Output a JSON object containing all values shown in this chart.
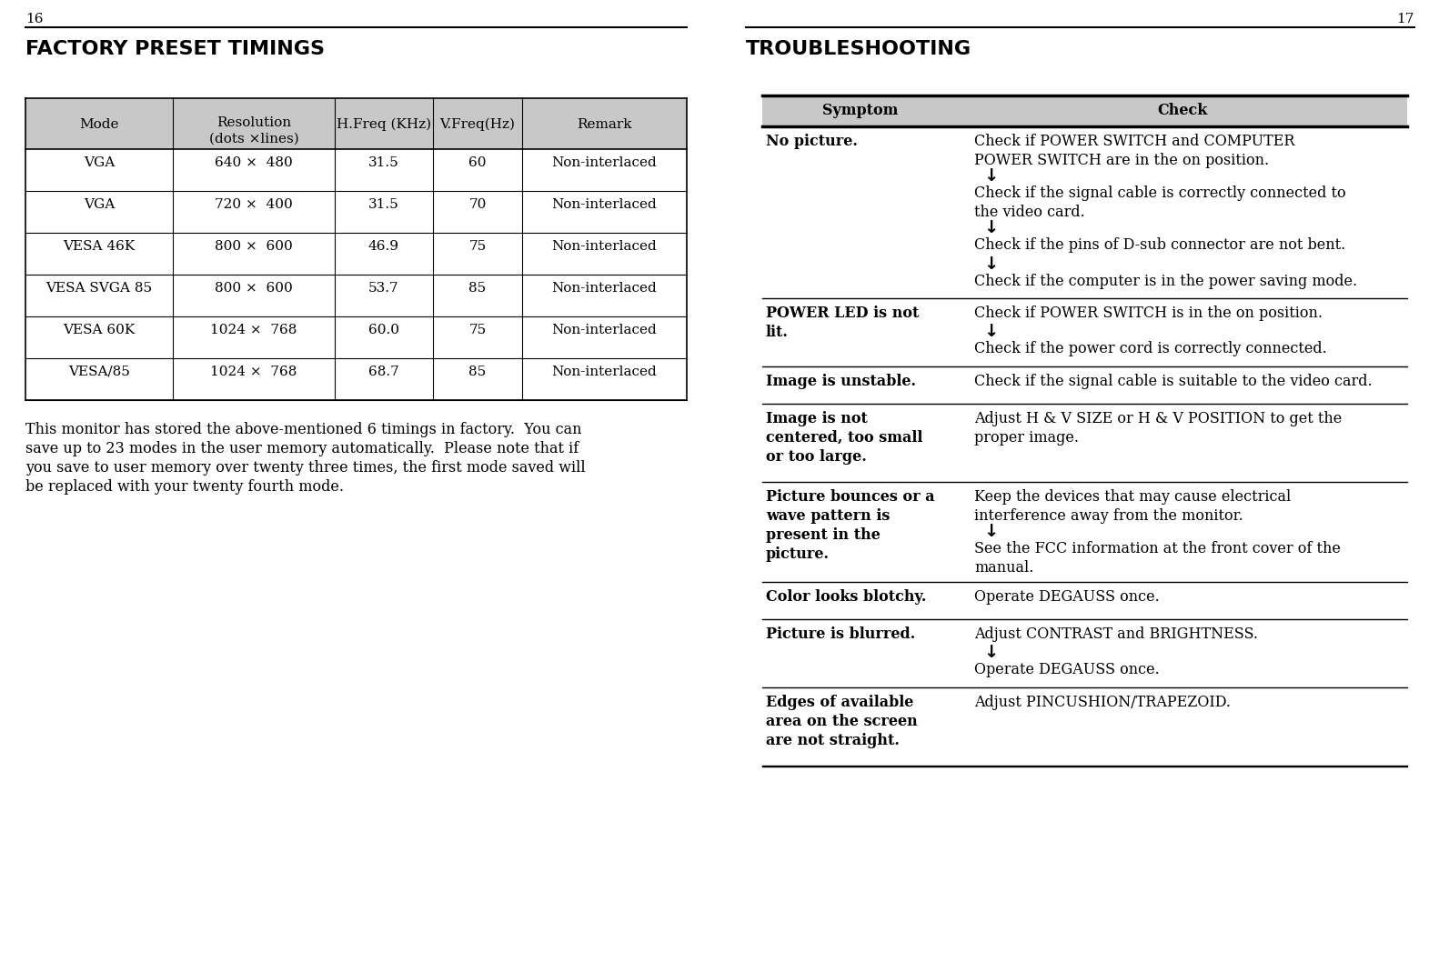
{
  "page_left_num": "16",
  "page_right_num": "17",
  "left_title": "FACTORY PRESET TIMINGS",
  "right_title": "TROUBLESHOOTING",
  "bg_color": "#ffffff",
  "table_header_bg": "#c8c8c8",
  "table_header_cols": [
    "Mode",
    "Resolution\n(dots ×lines)",
    "H.Freq (KHz)",
    "V.Freq(Hz)",
    "Remark"
  ],
  "table_rows": [
    [
      "VGA",
      "640 ×  480",
      "31.5",
      "60",
      "Non-interlaced"
    ],
    [
      "VGA",
      "720 ×  400",
      "31.5",
      "70",
      "Non-interlaced"
    ],
    [
      "VESA 46K",
      "800 ×  600",
      "46.9",
      "75",
      "Non-interlaced"
    ],
    [
      "VESA SVGA 85",
      "800 ×  600",
      "53.7",
      "85",
      "Non-interlaced"
    ],
    [
      "VESA 60K",
      "1024 ×  768",
      "60.0",
      "75",
      "Non-interlaced"
    ],
    [
      "VESA/85",
      "1024 ×  768",
      "68.7",
      "85",
      "Non-interlaced"
    ]
  ],
  "footnote": "This monitor has stored the above-mentioned 6 timings in factory.  You can\nsave up to 23 modes in the user memory automatically.  Please note that if\nyou save to user memory over twenty three times, the first mode saved will\nbe replaced with your twenty fourth mode.",
  "ts_rows": [
    {
      "symptom": "No picture.",
      "checks": [
        "Check if POWER SWITCH and COMPUTER\nPOWER SWITCH are in the on position.",
        "Check if the signal cable is correctly connected to\nthe video card.",
        "Check if the pins of D-sub connector are not bent.",
        "Check if the computer is in the power saving mode."
      ],
      "arrows": [
        true,
        true,
        true,
        false
      ]
    },
    {
      "symptom": "POWER LED is not\nlit.",
      "checks": [
        "Check if POWER SWITCH is in the on position.",
        "Check if the power cord is correctly connected."
      ],
      "arrows": [
        true,
        false
      ]
    },
    {
      "symptom": "Image is unstable.",
      "checks": [
        "Check if the signal cable is suitable to the video card."
      ],
      "arrows": [
        false
      ]
    },
    {
      "symptom": "Image is not\ncentered, too small\nor too large.",
      "checks": [
        "Adjust H & V SIZE or H & V POSITION to get the\nproper image."
      ],
      "arrows": [
        false
      ]
    },
    {
      "symptom": "Picture bounces or a\nwave pattern is\npresent in the\npicture.",
      "checks": [
        "Keep the devices that may cause electrical\ninterference away from the monitor.",
        "See the FCC information at the front cover of the\nmanual."
      ],
      "arrows": [
        true,
        false
      ]
    },
    {
      "symptom": "Color looks blotchy.",
      "checks": [
        "Operate DEGAUSS once."
      ],
      "arrows": [
        false
      ]
    },
    {
      "symptom": "Picture is blurred.",
      "checks": [
        "Adjust CONTRAST and BRIGHTNESS.",
        "Operate DEGAUSS once."
      ],
      "arrows": [
        true,
        false
      ]
    },
    {
      "symptom": "Edges of available\narea on the screen\nare not straight.",
      "checks": [
        "Adjust PINCUSHION/TRAPEZOID."
      ],
      "arrows": [
        false
      ]
    }
  ]
}
